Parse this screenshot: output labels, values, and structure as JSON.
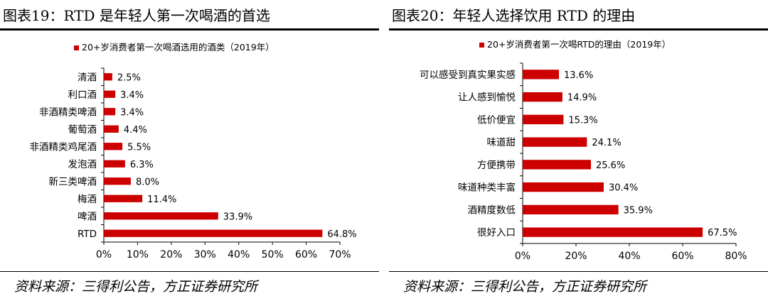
{
  "left_panel": {
    "title": "图表19：RTD 是年轻人第一次喝酒的首选",
    "source": "资料来源：三得利公告，方正证券研究所"
  },
  "right_panel": {
    "title": "图表20：年轻人选择饮用 RTD 的理由",
    "source": "资料来源：三得利公告，方正证券研究所"
  },
  "chart_data": [
    {
      "type": "bar",
      "orientation": "horizontal",
      "categories": [
        "清酒",
        "利口酒",
        "非酒精类啤酒",
        "葡萄酒",
        "非酒精类鸡尾酒",
        "发泡酒",
        "新三类啤酒",
        "梅酒",
        "啤酒",
        "RTD"
      ],
      "series": [
        {
          "name": "20+岁消费者第一次喝酒选用的酒类（2019年）",
          "values": [
            2.5,
            3.4,
            3.4,
            4.4,
            5.5,
            6.3,
            8.0,
            11.4,
            33.9,
            64.8
          ],
          "labels": [
            "2.5%",
            "3.4%",
            "3.4%",
            "4.4%",
            "5.5%",
            "6.3%",
            "8.0%",
            "11.4%",
            "33.9%",
            "64.8%"
          ]
        }
      ],
      "xlim": [
        0,
        70
      ],
      "xticks": [
        "0%",
        "10%",
        "20%",
        "30%",
        "40%",
        "50%",
        "60%",
        "70%"
      ],
      "legend": "top",
      "grid": false,
      "bar_color": "#cc0000"
    },
    {
      "type": "bar",
      "orientation": "horizontal",
      "categories": [
        "可以感受到真实果实感",
        "让人感到愉悦",
        "低价便宜",
        "味道甜",
        "方便携带",
        "味道种类丰富",
        "酒精度数低",
        "很好入口"
      ],
      "series": [
        {
          "name": "20+岁消费者第一次喝RTD的理由（2019年）",
          "values": [
            13.6,
            14.9,
            15.3,
            24.1,
            25.6,
            30.4,
            35.9,
            67.5
          ],
          "labels": [
            "13.6%",
            "14.9%",
            "15.3%",
            "24.1%",
            "25.6%",
            "30.4%",
            "35.9%",
            "67.5%"
          ]
        }
      ],
      "xlim": [
        0,
        80
      ],
      "xticks": [
        "0%",
        "20%",
        "40%",
        "60%",
        "80%"
      ],
      "legend": "top",
      "grid": false,
      "bar_color": "#cc0000"
    }
  ]
}
